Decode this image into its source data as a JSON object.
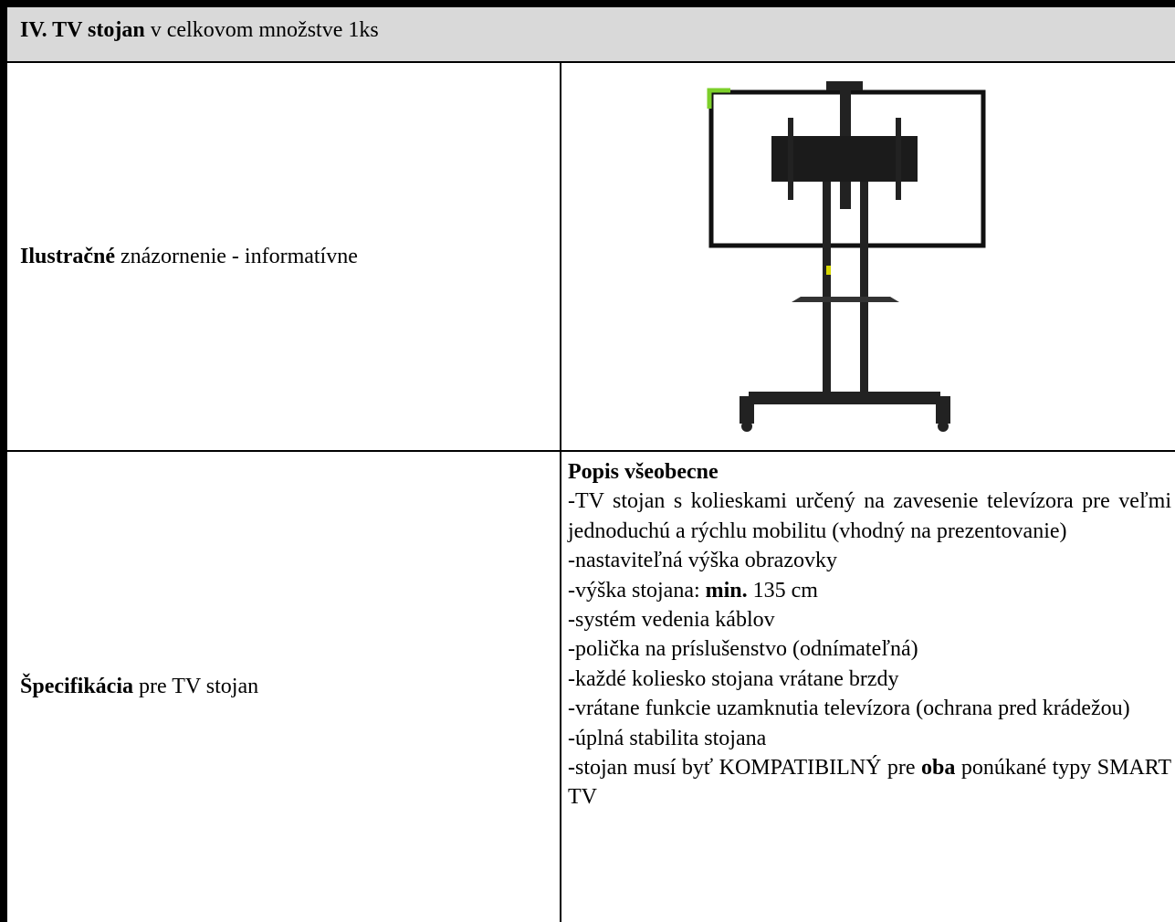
{
  "header": {
    "title_bold": "IV. TV stojan",
    "title_rest": "v celkovom množstve 1ks"
  },
  "rows": [
    {
      "label_bold": "Ilustračné",
      "label_rest": "znázornenie - informatívne"
    },
    {
      "label_bold": "Špecifikácia",
      "label_rest": "pre TV stojan",
      "description": {
        "heading": "Popis všeobecne",
        "items": [
          [
            {
              "text": "-TV stojan s kolieskami určený na zavesenie televízora pre veľmi jednoduchú a rýchlu mobilitu (vhodný na prezentovanie)",
              "bold": false
            }
          ],
          [
            {
              "text": "-nastaviteľná výška obrazovky",
              "bold": false
            }
          ],
          [
            {
              "text": "-výška stojana:",
              "bold": false
            },
            {
              "text": "min.",
              "bold": true
            },
            {
              "text": "135 cm",
              "bold": false
            }
          ],
          [
            {
              "text": "-systém vedenia káblov",
              "bold": false
            }
          ],
          [
            {
              "text": "-polička na príslušenstvo (odnímateľná)",
              "bold": false
            }
          ],
          [
            {
              "text": "-každé koliesko stojana vrátane brzdy",
              "bold": false
            }
          ],
          [
            {
              "text": "-vrátane funkcie uzamknutia televízora (ochrana pred krádežou)",
              "bold": false
            }
          ],
          [
            {
              "text": "-úplná stabilita stojana",
              "bold": false
            }
          ],
          [
            {
              "text": "-stojan musí byť KOMPATIBILNÝ pre",
              "bold": false
            },
            {
              "text": "oba",
              "bold": true
            },
            {
              "text": "ponúkané typy SMART TV",
              "bold": false
            }
          ]
        ]
      }
    }
  ]
}
